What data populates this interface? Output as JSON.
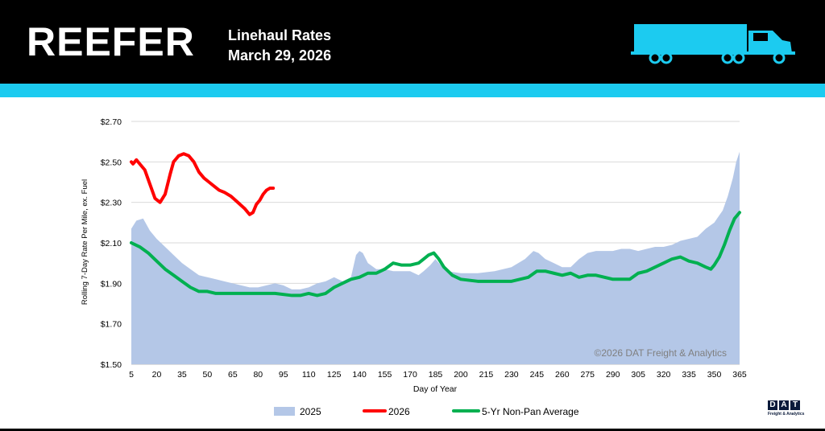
{
  "header": {
    "title": "REEFER",
    "subtitle_line1": "Linehaul Rates",
    "subtitle_line2": "March 29, 2026",
    "icon": "truck-icon",
    "colors": {
      "bar": "#000000",
      "accent": "#1ccbf0",
      "truck": "#1ccbf0"
    }
  },
  "footer": {
    "logo_text": "DAT",
    "logo_tagline": "Freight & Analytics"
  },
  "chart_data": {
    "type": "area",
    "ylabel": "Rolling 7-Day Rate Per Mile, ex. Fuel",
    "xlabel": "Day of Year",
    "ylim": [
      1.5,
      2.7
    ],
    "xlim": [
      5,
      365
    ],
    "y_ticks": [
      1.5,
      1.7,
      1.9,
      2.1,
      2.3,
      2.5,
      2.7
    ],
    "y_tick_labels": [
      "$1.50",
      "$1.70",
      "$1.90",
      "$2.10",
      "$2.30",
      "$2.50",
      "$2.70"
    ],
    "x_ticks": [
      5,
      20,
      35,
      50,
      65,
      80,
      95,
      110,
      125,
      140,
      155,
      170,
      185,
      200,
      215,
      230,
      245,
      260,
      275,
      290,
      305,
      320,
      335,
      350,
      365
    ],
    "watermark": "©2026 DAT Freight & Analytics",
    "grid": "horizontal",
    "series": [
      {
        "name": "2025",
        "style": "area",
        "color": "#b4c7e7",
        "x": [
          5,
          8,
          12,
          16,
          20,
          25,
          30,
          35,
          40,
          45,
          50,
          55,
          60,
          65,
          70,
          75,
          80,
          85,
          90,
          95,
          100,
          105,
          110,
          115,
          120,
          125,
          130,
          135,
          138,
          140,
          142,
          145,
          150,
          155,
          160,
          165,
          170,
          175,
          178,
          182,
          185,
          188,
          192,
          200,
          210,
          220,
          230,
          238,
          243,
          246,
          250,
          255,
          260,
          265,
          270,
          275,
          280,
          285,
          290,
          295,
          300,
          305,
          310,
          315,
          320,
          325,
          330,
          335,
          340,
          345,
          350,
          355,
          358,
          361,
          363,
          365
        ],
        "values": [
          2.17,
          2.21,
          2.22,
          2.16,
          2.12,
          2.08,
          2.04,
          2.0,
          1.97,
          1.94,
          1.93,
          1.92,
          1.91,
          1.9,
          1.89,
          1.88,
          1.88,
          1.89,
          1.9,
          1.89,
          1.87,
          1.87,
          1.88,
          1.9,
          1.91,
          1.93,
          1.91,
          1.93,
          2.04,
          2.06,
          2.05,
          2.0,
          1.97,
          1.97,
          1.96,
          1.96,
          1.96,
          1.94,
          1.96,
          1.99,
          2.02,
          1.99,
          1.96,
          1.95,
          1.95,
          1.96,
          1.98,
          2.02,
          2.06,
          2.05,
          2.02,
          2.0,
          1.98,
          1.98,
          2.02,
          2.05,
          2.06,
          2.06,
          2.06,
          2.07,
          2.07,
          2.06,
          2.07,
          2.08,
          2.08,
          2.09,
          2.11,
          2.12,
          2.13,
          2.17,
          2.2,
          2.26,
          2.33,
          2.42,
          2.5,
          2.55
        ]
      },
      {
        "name": "2026",
        "style": "line",
        "color": "#ff0000",
        "x": [
          5,
          6,
          8,
          10,
          13,
          16,
          19,
          22,
          25,
          28,
          30,
          33,
          36,
          39,
          42,
          45,
          48,
          51,
          54,
          57,
          60,
          64,
          68,
          72,
          75,
          77,
          79,
          81,
          83,
          85,
          87,
          89
        ],
        "values": [
          2.5,
          2.49,
          2.51,
          2.49,
          2.46,
          2.39,
          2.32,
          2.3,
          2.34,
          2.44,
          2.5,
          2.53,
          2.54,
          2.53,
          2.5,
          2.45,
          2.42,
          2.4,
          2.38,
          2.36,
          2.35,
          2.33,
          2.3,
          2.27,
          2.24,
          2.25,
          2.29,
          2.31,
          2.34,
          2.36,
          2.37,
          2.37
        ]
      },
      {
        "name": "5-Yr Non-Pan Average",
        "style": "line",
        "color": "#00b050",
        "x": [
          5,
          10,
          15,
          20,
          25,
          30,
          35,
          40,
          45,
          50,
          55,
          60,
          65,
          70,
          80,
          90,
          100,
          105,
          110,
          115,
          120,
          125,
          130,
          135,
          140,
          145,
          150,
          155,
          160,
          165,
          170,
          175,
          178,
          181,
          184,
          187,
          190,
          195,
          200,
          210,
          220,
          230,
          240,
          245,
          250,
          255,
          260,
          265,
          270,
          275,
          280,
          285,
          290,
          295,
          300,
          305,
          310,
          315,
          320,
          325,
          330,
          335,
          340,
          345,
          348,
          350,
          353,
          356,
          359,
          362,
          365
        ],
        "values": [
          2.1,
          2.08,
          2.05,
          2.01,
          1.97,
          1.94,
          1.91,
          1.88,
          1.86,
          1.86,
          1.85,
          1.85,
          1.85,
          1.85,
          1.85,
          1.85,
          1.84,
          1.84,
          1.85,
          1.84,
          1.85,
          1.88,
          1.9,
          1.92,
          1.93,
          1.95,
          1.95,
          1.97,
          2.0,
          1.99,
          1.99,
          2.0,
          2.02,
          2.04,
          2.05,
          2.02,
          1.98,
          1.94,
          1.92,
          1.91,
          1.91,
          1.91,
          1.93,
          1.96,
          1.96,
          1.95,
          1.94,
          1.95,
          1.93,
          1.94,
          1.94,
          1.93,
          1.92,
          1.92,
          1.92,
          1.95,
          1.96,
          1.98,
          2.0,
          2.02,
          2.03,
          2.01,
          2.0,
          1.98,
          1.97,
          1.99,
          2.03,
          2.09,
          2.16,
          2.22,
          2.25
        ]
      }
    ]
  }
}
